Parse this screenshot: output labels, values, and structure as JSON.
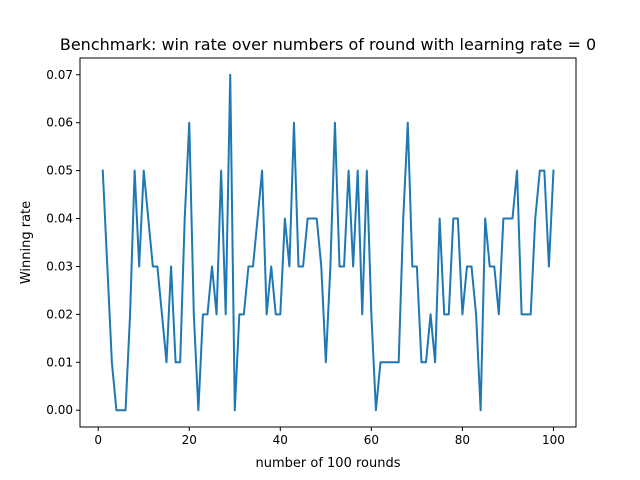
{
  "chart_data": {
    "type": "line",
    "title": "Benchmark: win rate over numbers of round with learning rate = 0",
    "xlabel": "number of 100 rounds",
    "ylabel": "Winning rate",
    "xlim": [
      -4,
      104.95
    ],
    "ylim": [
      -0.0035,
      0.0735
    ],
    "xticks": [
      0,
      20,
      40,
      60,
      80,
      100
    ],
    "yticks": [
      0.0,
      0.01,
      0.02,
      0.03,
      0.04,
      0.05,
      0.06,
      0.07
    ],
    "xtick_labels": [
      "0",
      "20",
      "40",
      "60",
      "80",
      "100"
    ],
    "ytick_labels": [
      "0.00",
      "0.01",
      "0.02",
      "0.03",
      "0.04",
      "0.05",
      "0.06",
      "0.07"
    ],
    "grid": false,
    "line_color": "#1f77b4",
    "series": [
      {
        "x": [
          1,
          2,
          3,
          4,
          5,
          6,
          7,
          8,
          9,
          10,
          11,
          12,
          13,
          14,
          15,
          16,
          17,
          18,
          19,
          20,
          21,
          22,
          23,
          24,
          25,
          26,
          27,
          28,
          29,
          30,
          31,
          32,
          33,
          34,
          35,
          36,
          37,
          38,
          39,
          40,
          41,
          42,
          43,
          44,
          45,
          46,
          47,
          48,
          49,
          50,
          51,
          52,
          53,
          54,
          55,
          56,
          57,
          58,
          59,
          60,
          61,
          62,
          63,
          64,
          65,
          66,
          67,
          68,
          69,
          70,
          71,
          72,
          73,
          74,
          75,
          76,
          77,
          78,
          79,
          80,
          81,
          82,
          83,
          84,
          85,
          86,
          87,
          88,
          89,
          90,
          91,
          92,
          93,
          94,
          95,
          96,
          97,
          98,
          99,
          100
        ],
        "y": [
          0.05,
          0.03,
          0.01,
          0.0,
          0.0,
          0.0,
          0.02,
          0.05,
          0.03,
          0.05,
          0.04,
          0.03,
          0.03,
          0.02,
          0.01,
          0.03,
          0.01,
          0.01,
          0.04,
          0.06,
          0.02,
          0.0,
          0.02,
          0.02,
          0.03,
          0.02,
          0.05,
          0.02,
          0.07,
          0.0,
          0.02,
          0.02,
          0.03,
          0.03,
          0.04,
          0.05,
          0.02,
          0.03,
          0.02,
          0.02,
          0.04,
          0.03,
          0.06,
          0.03,
          0.03,
          0.04,
          0.04,
          0.04,
          0.03,
          0.01,
          0.03,
          0.06,
          0.03,
          0.03,
          0.05,
          0.03,
          0.05,
          0.02,
          0.05,
          0.02,
          0.0,
          0.01,
          0.01,
          0.01,
          0.01,
          0.01,
          0.04,
          0.06,
          0.03,
          0.03,
          0.01,
          0.01,
          0.02,
          0.01,
          0.04,
          0.02,
          0.02,
          0.04,
          0.04,
          0.02,
          0.03,
          0.03,
          0.02,
          0.0,
          0.04,
          0.03,
          0.03,
          0.02,
          0.04,
          0.04,
          0.04,
          0.05,
          0.02,
          0.02,
          0.02,
          0.04,
          0.05,
          0.05,
          0.03,
          0.05
        ]
      }
    ]
  }
}
